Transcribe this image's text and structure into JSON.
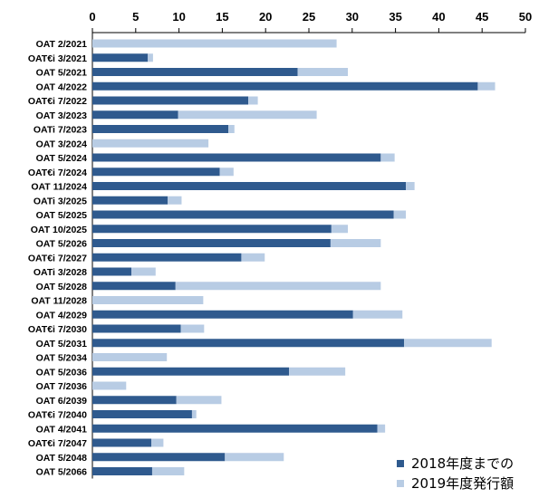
{
  "chart_data": {
    "type": "bar",
    "orientation": "horizontal",
    "stacked": true,
    "xlim": [
      0,
      50
    ],
    "x_ticks": [
      0,
      5,
      10,
      15,
      20,
      25,
      30,
      35,
      40,
      45,
      50
    ],
    "x_tick_labels": [
      "0",
      "5",
      "10",
      "15",
      "20",
      "25",
      "30",
      "35",
      "40",
      "45",
      "50"
    ],
    "grid": false,
    "legend_position": "bottom-right",
    "categories": [
      "OAT 2/2021",
      "OAT€i 3/2021",
      "OAT 5/2021",
      "OAT 4/2022",
      "OAT€i 7/2022",
      "OAT 3/2023",
      "OATi 7/2023",
      "OAT 3/2024",
      "OAT 5/2024",
      "OAT€i 7/2024",
      "OAT 11/2024",
      "OATi 3/2025",
      "OAT 5/2025",
      "OAT 10/2025",
      "OAT 5/2026",
      "OAT€i 7/2027",
      "OATi 3/2028",
      "OAT 5/2028",
      "OAT 11/2028",
      "OAT 4/2029",
      "OAT€i 7/2030",
      "OAT 5/2031",
      "OAT 5/2034",
      "OAT 5/2036",
      "OAT 7/2036",
      "OAT 6/2039",
      "OAT€i 7/2040",
      "OAT 4/2041",
      "OAT€i 7/2047",
      "OAT 5/2048",
      "OAT 5/2066"
    ],
    "series": [
      {
        "name": "2018年度までの",
        "color": "#2f5a8e",
        "values": [
          0,
          6.4,
          23.7,
          44.5,
          18.0,
          9.9,
          15.7,
          0,
          33.3,
          14.7,
          36.2,
          8.7,
          34.8,
          27.6,
          27.5,
          17.2,
          4.5,
          9.6,
          0,
          30.1,
          10.2,
          36.0,
          0,
          22.7,
          0,
          9.7,
          11.5,
          32.9,
          6.8,
          15.3,
          6.9
        ]
      },
      {
        "name": "2019年度発行額",
        "color": "#b8cce4",
        "values": [
          28.2,
          0.6,
          5.8,
          2.0,
          1.1,
          16.0,
          0.7,
          13.4,
          1.6,
          1.6,
          1.0,
          1.6,
          1.4,
          1.9,
          5.8,
          2.7,
          2.8,
          23.7,
          12.8,
          5.7,
          2.7,
          10.1,
          8.6,
          6.5,
          3.9,
          5.2,
          0.5,
          0.9,
          1.4,
          6.8,
          3.7
        ]
      }
    ]
  }
}
